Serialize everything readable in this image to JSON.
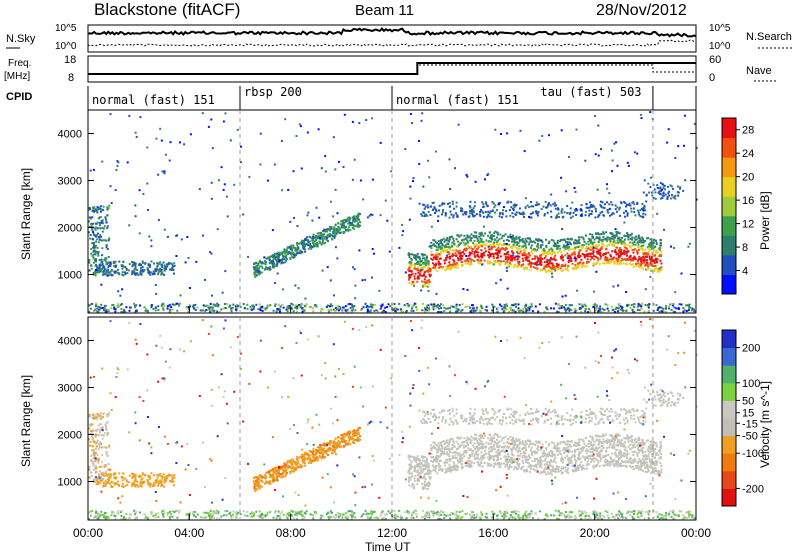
{
  "header": {
    "station": "Blackstone (fitACF)",
    "beam": "Beam 11",
    "date": "28/Nov/2012"
  },
  "noise_panel": {
    "left_label": "N.Sky",
    "right_label": "N.Search",
    "left_ticks": [
      "10^5",
      "10^0"
    ],
    "right_ticks": [
      "10^5",
      "10^0"
    ]
  },
  "freq_panel": {
    "left_label_line1": "Freq.",
    "left_label_line2": "[MHz]",
    "right_label": "Nave",
    "left_ticks": [
      "18",
      "8"
    ],
    "right_ticks": [
      "60",
      "0"
    ]
  },
  "cpid": {
    "label": "CPID",
    "segments": [
      {
        "start_h": 0,
        "end_h": 6,
        "text": "normal (fast) 151"
      },
      {
        "start_h": 6,
        "end_h": 12,
        "text": "rbsp 200"
      },
      {
        "start_h": 12,
        "end_h": 22.3,
        "text": "normal (fast) 151"
      },
      {
        "start_h": 17.7,
        "end_h": 22.3,
        "text": "tau (fast) 503"
      }
    ],
    "boundaries_h": [
      6,
      12,
      22.3
    ]
  },
  "colors": {
    "power_scale": [
      "#0010ff",
      "#2050c0",
      "#2e7f6a",
      "#3ea04a",
      "#9fcc3a",
      "#e8d020",
      "#f59a10",
      "#f05010",
      "#e81010"
    ],
    "velocity_scale": [
      "#2030c8",
      "#3a6ad0",
      "#52b06a",
      "#7dd040",
      "#c8c8c0",
      "#c0c0b8",
      "#f0a020",
      "#f07a10",
      "#e84818",
      "#e01010"
    ]
  },
  "chart_data": [
    {
      "type": "heatmap",
      "title": "Power",
      "xlabel": "",
      "ylabel": "Slant Range [km]",
      "xlim": [
        0,
        24
      ],
      "ylim": [
        180,
        4500
      ],
      "x_tick_labels": [
        "00:00",
        "04:00",
        "08:00",
        "12:00",
        "16:00",
        "20:00",
        "00:00"
      ],
      "y_ticks": [
        1000,
        2000,
        3000,
        4000
      ],
      "colorbar": {
        "label": "Power [dB]",
        "ticks": [
          4,
          8,
          12,
          16,
          20,
          24,
          28
        ],
        "range": [
          0,
          30
        ]
      },
      "features": [
        {
          "name": "main echo band",
          "x_range_h": [
            13.0,
            22.3
          ],
          "range_km": [
            1300,
            1800
          ],
          "peak_power_db": 28
        },
        {
          "name": "rbsp echo patch",
          "x_range_h": [
            6.3,
            10.8
          ],
          "range_km": [
            900,
            2300
          ],
          "peak_power_db": 12
        },
        {
          "name": "near-range clutter",
          "x_range_h": [
            0,
            24
          ],
          "range_km": [
            200,
            400
          ],
          "peak_power_db": 10
        }
      ]
    },
    {
      "type": "heatmap",
      "title": "Velocity",
      "xlabel": "Time UT",
      "ylabel": "Slant Range [km]",
      "xlim": [
        0,
        24
      ],
      "ylim": [
        180,
        4500
      ],
      "x_tick_labels": [
        "00:00",
        "04:00",
        "08:00",
        "12:00",
        "16:00",
        "20:00",
        "00:00"
      ],
      "y_ticks": [
        1000,
        2000,
        3000,
        4000
      ],
      "colorbar": {
        "label": "Velocity [m s^-1]",
        "ticks": [
          200,
          100,
          50,
          15,
          -15,
          -50,
          -100,
          -200
        ],
        "range": [
          -250,
          250
        ]
      },
      "features": [
        {
          "name": "ground scatter band",
          "x_range_h": [
            13.0,
            22.3
          ],
          "range_km": [
            1100,
            1900
          ],
          "velocity_ms": 0
        },
        {
          "name": "negative velocity patch",
          "x_range_h": [
            6.3,
            10.8
          ],
          "range_km": [
            900,
            2100
          ],
          "velocity_ms": -60
        },
        {
          "name": "early negative patch",
          "x_range_h": [
            0.3,
            3.4
          ],
          "range_km": [
            900,
            1500
          ],
          "velocity_ms": -60
        }
      ]
    }
  ]
}
